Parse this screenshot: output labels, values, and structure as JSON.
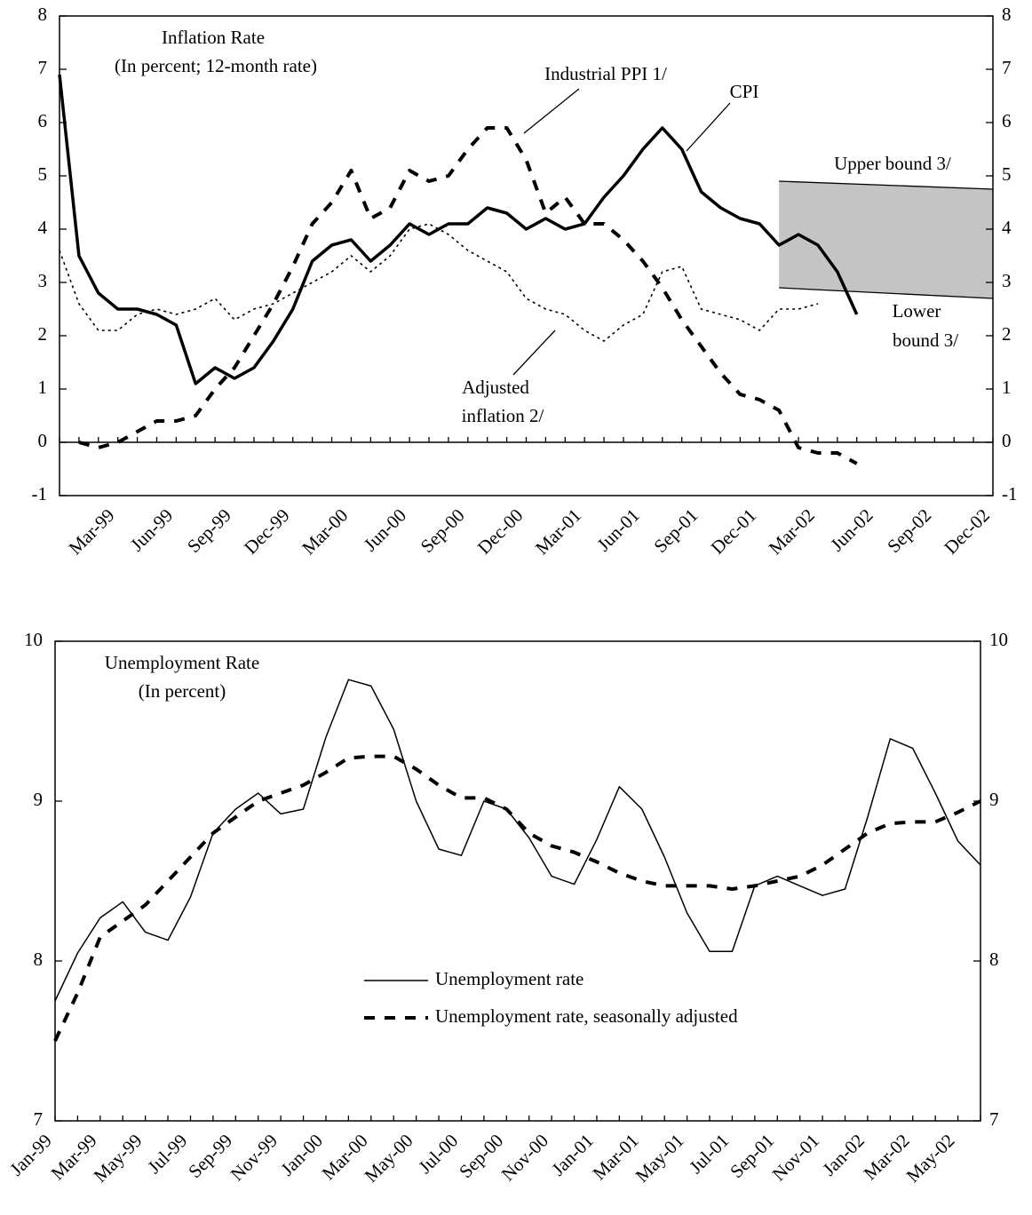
{
  "chart_data": [
    {
      "type": "line",
      "title": "Inflation Rate",
      "subtitle": "(In percent; 12-month rate)",
      "categories": [
        null,
        null,
        null,
        "Mar-99",
        null,
        null,
        "Jun-99",
        null,
        null,
        "Sep-99",
        null,
        null,
        "Dec-99",
        null,
        null,
        "Mar-00",
        null,
        null,
        "Jun-00",
        null,
        null,
        "Sep-00",
        null,
        null,
        "Dec-00",
        null,
        null,
        "Mar-01",
        null,
        null,
        "Jun-01",
        null,
        null,
        "Sep-01",
        null,
        null,
        "Dec-01",
        null,
        null,
        "Mar-02",
        null,
        null,
        "Jun-02",
        null,
        null,
        "Sep-02",
        null,
        null,
        "Dec-02"
      ],
      "series": [
        {
          "label": [
            "CPI"
          ],
          "color": "#000000",
          "line_style": "solid",
          "values": [
            6.9,
            3.5,
            2.8,
            2.5,
            2.5,
            2.4,
            2.2,
            1.1,
            1.4,
            1.2,
            1.4,
            1.9,
            2.5,
            3.4,
            3.7,
            3.8,
            3.4,
            3.7,
            4.1,
            3.9,
            4.1,
            4.1,
            4.4,
            4.3,
            4.0,
            4.2,
            4.0,
            4.1,
            4.6,
            5.0,
            5.5,
            5.9,
            5.5,
            4.7,
            4.4,
            4.2,
            4.1,
            3.7,
            3.9,
            3.7,
            3.2,
            2.4,
            null,
            null,
            null,
            null,
            null,
            null,
            null
          ]
        },
        {
          "label": [
            "Industrial PPI 1/"
          ],
          "color": "#000000",
          "line_style": "dashed",
          "values": [
            null,
            0.0,
            -0.1,
            0.0,
            0.2,
            0.4,
            0.4,
            0.5,
            1.0,
            1.4,
            2.0,
            2.6,
            3.3,
            4.1,
            4.5,
            5.1,
            4.2,
            4.4,
            5.1,
            4.9,
            5.0,
            5.5,
            5.9,
            5.9,
            5.3,
            4.3,
            4.6,
            4.1,
            4.1,
            3.8,
            3.4,
            2.9,
            2.3,
            1.8,
            1.3,
            0.9,
            0.8,
            0.6,
            -0.1,
            -0.2,
            -0.2,
            -0.4,
            null,
            null,
            null,
            null,
            null,
            null,
            null
          ]
        },
        {
          "label": [
            "Adjusted",
            "inflation 2/"
          ],
          "color": "#000000",
          "line_style": "dotted",
          "values": [
            3.6,
            2.6,
            2.1,
            2.1,
            2.4,
            2.5,
            2.4,
            2.5,
            2.7,
            2.3,
            2.5,
            2.6,
            2.8,
            3.0,
            3.2,
            3.5,
            3.2,
            3.5,
            4.0,
            4.1,
            3.9,
            3.6,
            3.4,
            3.2,
            2.7,
            2.5,
            2.4,
            2.1,
            1.9,
            2.2,
            2.4,
            3.2,
            3.3,
            2.5,
            2.4,
            2.3,
            2.1,
            2.5,
            2.5,
            2.6,
            null,
            null,
            null,
            null,
            null,
            null,
            null,
            null,
            null
          ]
        }
      ],
      "bounds": [
        {
          "label": [
            "Upper bound 3/"
          ],
          "values": [
            null,
            null,
            null,
            null,
            null,
            null,
            null,
            null,
            null,
            null,
            null,
            null,
            null,
            null,
            null,
            null,
            null,
            null,
            null,
            null,
            null,
            null,
            null,
            null,
            null,
            null,
            null,
            null,
            null,
            null,
            null,
            null,
            null,
            null,
            null,
            null,
            null,
            4.9,
            null,
            null,
            null,
            null,
            null,
            null,
            null,
            null,
            null,
            null,
            4.75
          ]
        },
        {
          "label": [
            "Lower",
            "bound 3/"
          ],
          "values": [
            null,
            null,
            null,
            null,
            null,
            null,
            null,
            null,
            null,
            null,
            null,
            null,
            null,
            null,
            null,
            null,
            null,
            null,
            null,
            null,
            null,
            null,
            null,
            null,
            null,
            null,
            null,
            null,
            null,
            null,
            null,
            null,
            null,
            null,
            null,
            null,
            null,
            2.9,
            null,
            null,
            null,
            null,
            null,
            null,
            null,
            null,
            null,
            null,
            2.7
          ]
        }
      ],
      "band_color": "#c4c4c4",
      "ylim": [
        -1,
        8
      ],
      "yticks": [
        -1,
        0,
        1,
        2,
        3,
        4,
        5,
        6,
        7,
        8
      ],
      "y2lim": [
        -1,
        8
      ],
      "y2ticks": [
        -1,
        0,
        1,
        2,
        3,
        4,
        5,
        6,
        7,
        8
      ],
      "zero_line": true
    },
    {
      "type": "line",
      "title": "Unemployment Rate",
      "subtitle": "(In percent)",
      "categories": [
        "Jan-99",
        null,
        "Mar-99",
        null,
        "May-99",
        null,
        "Jul-99",
        null,
        "Sep-99",
        null,
        "Nov-99",
        null,
        "Jan-00",
        null,
        "Mar-00",
        null,
        "May-00",
        null,
        "Jul-00",
        null,
        "Sep-00",
        null,
        "Nov-00",
        null,
        "Jan-01",
        null,
        "Mar-01",
        null,
        "May-01",
        null,
        "Jul-01",
        null,
        "Sep-01",
        null,
        "Nov-01",
        null,
        "Jan-02",
        null,
        "Mar-02",
        null,
        "May-02",
        null
      ],
      "series": [
        {
          "name": "Unemployment rate",
          "color": "#000000",
          "line_style": "solid",
          "values": [
            7.75,
            8.05,
            8.27,
            8.37,
            8.18,
            8.13,
            8.4,
            8.8,
            8.95,
            9.05,
            8.92,
            8.95,
            9.4,
            9.76,
            9.72,
            9.45,
            9.0,
            8.7,
            8.66,
            9.0,
            8.95,
            8.77,
            8.53,
            8.48,
            8.76,
            9.09,
            8.95,
            8.65,
            8.3,
            8.06,
            8.06,
            8.47,
            8.53,
            8.47,
            8.41,
            8.45,
            8.9,
            9.39,
            9.33,
            9.05,
            8.75,
            8.6
          ]
        },
        {
          "name": "Unemployment rate, seasonally adjusted",
          "color": "#000000",
          "line_style": "dashed",
          "values": [
            7.5,
            7.8,
            8.15,
            8.25,
            8.35,
            8.5,
            8.65,
            8.8,
            8.9,
            9.0,
            9.05,
            9.1,
            9.18,
            9.27,
            9.28,
            9.28,
            9.2,
            9.1,
            9.02,
            9.02,
            8.95,
            8.8,
            8.72,
            8.68,
            8.62,
            8.55,
            8.5,
            8.47,
            8.47,
            8.47,
            8.45,
            8.47,
            8.5,
            8.53,
            8.6,
            8.7,
            8.8,
            8.86,
            8.87,
            8.87,
            8.93,
            9.0
          ]
        }
      ],
      "ylim": [
        7,
        10
      ],
      "yticks": [
        7,
        8,
        9,
        10
      ],
      "y2lim": [
        7,
        10
      ],
      "y2ticks": [
        7,
        8,
        9,
        10
      ],
      "legend": "center"
    }
  ]
}
